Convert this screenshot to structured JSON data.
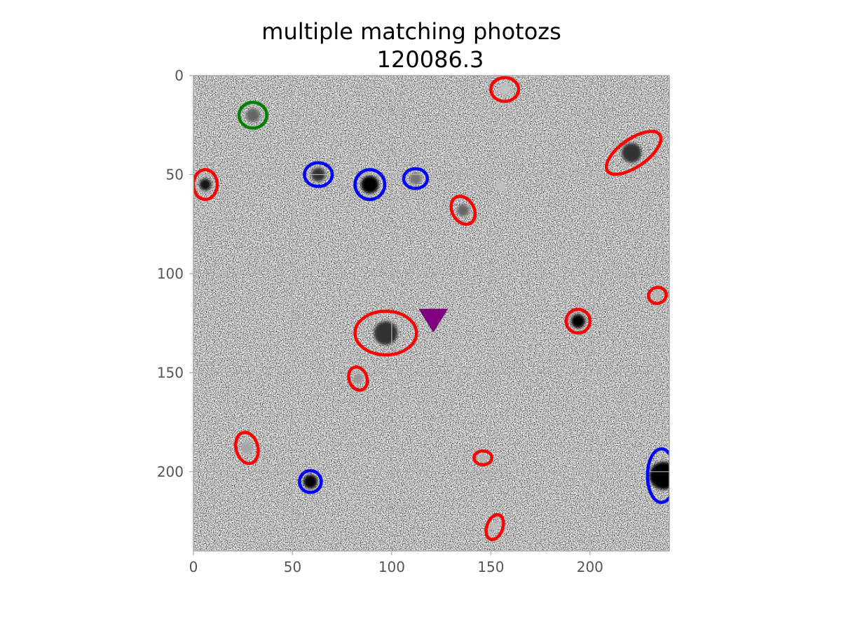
{
  "chart_data": {
    "type": "scatter",
    "title_line1": "multiple matching photozs",
    "title_line2": "120086.3",
    "xlabel": "",
    "ylabel": "",
    "xlim": [
      0,
      240
    ],
    "ylim": [
      240,
      0
    ],
    "x_ticks": [
      0,
      50,
      100,
      150,
      200
    ],
    "y_ticks": [
      0,
      50,
      100,
      150,
      200
    ],
    "grid": true,
    "colormap": "gray_r",
    "marker": {
      "shape": "triangle-down",
      "color": "#800080",
      "x": 121,
      "y": 122
    },
    "ellipses": [
      {
        "color": "#ff0000",
        "x": 157,
        "y": 7,
        "w": 14,
        "h": 12,
        "angle": 0
      },
      {
        "color": "#008000",
        "x": 30,
        "y": 20,
        "w": 14,
        "h": 13,
        "angle": 0
      },
      {
        "color": "#ff0000",
        "x": 222,
        "y": 39,
        "w": 32,
        "h": 14,
        "angle": -35
      },
      {
        "color": "#0000ff",
        "x": 63,
        "y": 50,
        "w": 14,
        "h": 12,
        "angle": 0
      },
      {
        "color": "#0000ff",
        "x": 89,
        "y": 55,
        "w": 15,
        "h": 15,
        "angle": 0
      },
      {
        "color": "#0000ff",
        "x": 112,
        "y": 52,
        "w": 12,
        "h": 10,
        "angle": 0
      },
      {
        "color": "#ff0000",
        "x": 6,
        "y": 55,
        "w": 12,
        "h": 15,
        "angle": 0
      },
      {
        "color": "#ff0000",
        "x": 136,
        "y": 68,
        "w": 11,
        "h": 15,
        "angle": -30
      },
      {
        "color": "#ff0000",
        "x": 234,
        "y": 111,
        "w": 9,
        "h": 8,
        "angle": -20
      },
      {
        "color": "#ff0000",
        "x": 97,
        "y": 130,
        "w": 31,
        "h": 22,
        "angle": 0
      },
      {
        "color": "#ff0000",
        "x": 194,
        "y": 124,
        "w": 12,
        "h": 12,
        "angle": 0
      },
      {
        "color": "#ff0000",
        "x": 83,
        "y": 153,
        "w": 9,
        "h": 12,
        "angle": -20
      },
      {
        "color": "#ff0000",
        "x": 27,
        "y": 188,
        "w": 11,
        "h": 16,
        "angle": -15
      },
      {
        "color": "#ff0000",
        "x": 146,
        "y": 193,
        "w": 9,
        "h": 7,
        "angle": 0
      },
      {
        "color": "#0000ff",
        "x": 59,
        "y": 205,
        "w": 11,
        "h": 11,
        "angle": 0
      },
      {
        "color": "#0000ff",
        "x": 236,
        "y": 202,
        "w": 14,
        "h": 27,
        "angle": 0
      },
      {
        "color": "#ff0000",
        "x": 152,
        "y": 228,
        "w": 8,
        "h": 13,
        "angle": 20
      }
    ],
    "sources": [
      {
        "x": 157,
        "y": 7,
        "r": 3,
        "i": 0.25
      },
      {
        "x": 30,
        "y": 20,
        "r": 3.5,
        "i": 0.6
      },
      {
        "x": 221,
        "y": 39,
        "r": 5,
        "i": 0.8
      },
      {
        "x": 63,
        "y": 50,
        "r": 3.5,
        "i": 0.8
      },
      {
        "x": 89,
        "y": 55,
        "r": 4.5,
        "i": 1.0
      },
      {
        "x": 112,
        "y": 52,
        "r": 3,
        "i": 0.55
      },
      {
        "x": 6,
        "y": 55,
        "r": 3,
        "i": 0.9
      },
      {
        "x": 136,
        "y": 68,
        "r": 3,
        "i": 0.6
      },
      {
        "x": 155,
        "y": 56,
        "r": 2.5,
        "i": 0.25
      },
      {
        "x": 234,
        "y": 111,
        "r": 2,
        "i": 0.3
      },
      {
        "x": 97,
        "y": 130,
        "r": 6,
        "i": 0.8
      },
      {
        "x": 194,
        "y": 124,
        "r": 3.5,
        "i": 1.0
      },
      {
        "x": 83,
        "y": 153,
        "r": 2.5,
        "i": 0.4
      },
      {
        "x": 27,
        "y": 188,
        "r": 3,
        "i": 0.35
      },
      {
        "x": 146,
        "y": 193,
        "r": 2,
        "i": 0.3
      },
      {
        "x": 59,
        "y": 205,
        "r": 3.5,
        "i": 1.0
      },
      {
        "x": 237,
        "y": 202,
        "r": 7,
        "i": 1.0
      },
      {
        "x": 152,
        "y": 228,
        "r": 2,
        "i": 0.25
      }
    ]
  }
}
